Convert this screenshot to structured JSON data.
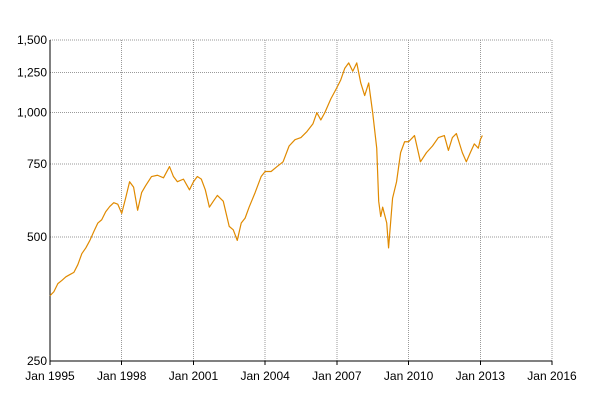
{
  "chart_data": {
    "type": "line",
    "title": "",
    "xlabel": "",
    "ylabel": "",
    "y_scale": "log",
    "ylim": [
      250,
      1500
    ],
    "xlim": [
      "1995-01-01",
      "2016-01-01"
    ],
    "grid": true,
    "line_color": "#e08a00",
    "grid_color": "#9a9a9a",
    "x_ticks": [
      {
        "date": "1995-01-01",
        "label": "Jan 1995"
      },
      {
        "date": "1998-01-01",
        "label": "Jan 1998"
      },
      {
        "date": "2001-01-01",
        "label": "Jan 2001"
      },
      {
        "date": "2004-01-01",
        "label": "Jan 2004"
      },
      {
        "date": "2007-01-01",
        "label": "Jan 2007"
      },
      {
        "date": "2010-01-01",
        "label": "Jan 2010"
      },
      {
        "date": "2013-01-01",
        "label": "Jan 2013"
      },
      {
        "date": "2016-01-01",
        "label": "Jan 2016"
      }
    ],
    "y_ticks": [
      {
        "value": 250,
        "label": "250"
      },
      {
        "value": 500,
        "label": "500"
      },
      {
        "value": 750,
        "label": "750"
      },
      {
        "value": 1000,
        "label": "1,000"
      },
      {
        "value": 1250,
        "label": "1,250"
      },
      {
        "value": 1500,
        "label": "1,500"
      }
    ],
    "series": [
      {
        "points": [
          [
            "1995-01-01",
            360
          ],
          [
            "1995-03-01",
            368
          ],
          [
            "1995-05-01",
            385
          ],
          [
            "1995-07-01",
            392
          ],
          [
            "1995-09-01",
            400
          ],
          [
            "1995-11-01",
            405
          ],
          [
            "1996-01-01",
            410
          ],
          [
            "1996-03-01",
            428
          ],
          [
            "1996-05-01",
            455
          ],
          [
            "1996-07-01",
            470
          ],
          [
            "1996-09-01",
            490
          ],
          [
            "1996-11-01",
            515
          ],
          [
            "1997-01-01",
            540
          ],
          [
            "1997-03-01",
            550
          ],
          [
            "1997-05-01",
            575
          ],
          [
            "1997-07-01",
            592
          ],
          [
            "1997-09-01",
            605
          ],
          [
            "1997-11-01",
            600
          ],
          [
            "1998-01-01",
            570
          ],
          [
            "1998-03-01",
            620
          ],
          [
            "1998-05-01",
            680
          ],
          [
            "1998-07-01",
            660
          ],
          [
            "1998-09-01",
            580
          ],
          [
            "1998-11-01",
            640
          ],
          [
            "1999-01-01",
            665
          ],
          [
            "1999-04-01",
            700
          ],
          [
            "1999-07-01",
            705
          ],
          [
            "1999-10-01",
            695
          ],
          [
            "2000-01-01",
            740
          ],
          [
            "2000-03-01",
            700
          ],
          [
            "2000-05-01",
            680
          ],
          [
            "2000-08-01",
            690
          ],
          [
            "2000-11-01",
            650
          ],
          [
            "2001-01-01",
            680
          ],
          [
            "2001-03-01",
            700
          ],
          [
            "2001-05-01",
            690
          ],
          [
            "2001-07-01",
            650
          ],
          [
            "2001-09-01",
            590
          ],
          [
            "2001-11-01",
            610
          ],
          [
            "2002-01-01",
            630
          ],
          [
            "2002-04-01",
            610
          ],
          [
            "2002-07-01",
            530
          ],
          [
            "2002-09-01",
            520
          ],
          [
            "2002-11-01",
            490
          ],
          [
            "2003-01-01",
            540
          ],
          [
            "2003-03-01",
            555
          ],
          [
            "2003-05-01",
            590
          ],
          [
            "2003-08-01",
            640
          ],
          [
            "2003-11-01",
            700
          ],
          [
            "2004-01-01",
            720
          ],
          [
            "2004-04-01",
            720
          ],
          [
            "2004-07-01",
            740
          ],
          [
            "2004-10-01",
            760
          ],
          [
            "2005-01-01",
            830
          ],
          [
            "2005-04-01",
            860
          ],
          [
            "2005-07-01",
            870
          ],
          [
            "2005-10-01",
            900
          ],
          [
            "2006-01-01",
            940
          ],
          [
            "2006-03-01",
            1000
          ],
          [
            "2006-05-01",
            960
          ],
          [
            "2006-07-01",
            1000
          ],
          [
            "2006-10-01",
            1080
          ],
          [
            "2007-01-01",
            1150
          ],
          [
            "2007-03-01",
            1200
          ],
          [
            "2007-05-01",
            1280
          ],
          [
            "2007-07-01",
            1320
          ],
          [
            "2007-09-01",
            1260
          ],
          [
            "2007-11-01",
            1320
          ],
          [
            "2008-01-01",
            1180
          ],
          [
            "2008-03-01",
            1100
          ],
          [
            "2008-05-01",
            1180
          ],
          [
            "2008-07-01",
            1000
          ],
          [
            "2008-09-01",
            820
          ],
          [
            "2008-10-01",
            610
          ],
          [
            "2008-11-01",
            560
          ],
          [
            "2008-12-01",
            590
          ],
          [
            "2009-02-01",
            540
          ],
          [
            "2009-03-01",
            470
          ],
          [
            "2009-05-01",
            620
          ],
          [
            "2009-07-01",
            680
          ],
          [
            "2009-09-01",
            800
          ],
          [
            "2009-11-01",
            850
          ],
          [
            "2010-01-01",
            850
          ],
          [
            "2010-04-01",
            880
          ],
          [
            "2010-07-01",
            760
          ],
          [
            "2010-10-01",
            800
          ],
          [
            "2011-01-01",
            830
          ],
          [
            "2011-04-01",
            870
          ],
          [
            "2011-07-01",
            880
          ],
          [
            "2011-09-01",
            810
          ],
          [
            "2011-11-01",
            870
          ],
          [
            "2012-01-01",
            890
          ],
          [
            "2012-04-01",
            800
          ],
          [
            "2012-06-01",
            760
          ],
          [
            "2012-08-01",
            800
          ],
          [
            "2012-10-01",
            840
          ],
          [
            "2012-12-01",
            820
          ],
          [
            "2013-01-01",
            860
          ],
          [
            "2013-02-01",
            880
          ]
        ]
      }
    ]
  }
}
